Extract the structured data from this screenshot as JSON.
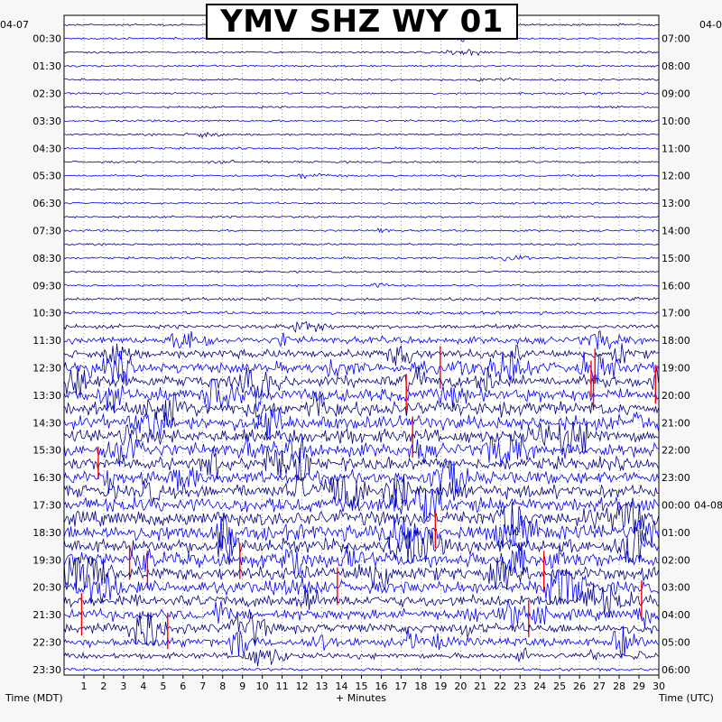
{
  "chart_data": {
    "type": "line",
    "title": "YMV SHZ WY 01",
    "xlabel": "+ Minutes",
    "left_axis_title": "Time (MDT)",
    "right_axis_title": "Time (UTC)",
    "left_start_date": "04-07",
    "right_start_date": "04-0",
    "right_date_change": "04-08",
    "xlim": [
      0,
      30
    ],
    "x_ticks": [
      "1",
      "2",
      "3",
      "4",
      "5",
      "6",
      "7",
      "8",
      "9",
      "10",
      "11",
      "12",
      "13",
      "14",
      "15",
      "16",
      "17",
      "18",
      "19",
      "20",
      "21",
      "22",
      "23",
      "24",
      "25",
      "26",
      "27",
      "28",
      "29",
      "30"
    ],
    "left_time_labels": [
      "00:30",
      "01:30",
      "02:30",
      "03:30",
      "04:30",
      "05:30",
      "06:30",
      "07:30",
      "08:30",
      "09:30",
      "10:30",
      "11:30",
      "12:30",
      "13:30",
      "14:30",
      "15:30",
      "16:30",
      "17:30",
      "18:30",
      "19:30",
      "20:30",
      "21:30",
      "22:30",
      "23:30"
    ],
    "right_time_labels": [
      "07:00",
      "08:00",
      "09:00",
      "10:00",
      "11:00",
      "12:00",
      "13:00",
      "14:00",
      "15:00",
      "16:00",
      "17:00",
      "18:00",
      "19:00",
      "20:00",
      "21:00",
      "22:00",
      "23:00",
      "00:00",
      "01:00",
      "02:00",
      "03:00",
      "04:00",
      "05:00",
      "06:00"
    ],
    "trace_count": 48,
    "trace_colors": [
      "#000080",
      "#0000ff"
    ],
    "clip_color": "#ff0000",
    "grid": "dotted vertical every minute",
    "activity_by_trace": [
      1,
      1,
      1,
      1,
      1,
      1,
      1,
      1,
      1,
      1,
      1,
      1,
      1,
      1,
      1,
      1,
      1,
      1,
      1,
      1,
      2,
      2,
      3,
      6,
      8,
      10,
      11,
      12,
      13,
      13,
      13,
      13,
      12,
      12,
      13,
      14,
      14,
      15,
      14,
      14,
      13,
      12,
      11,
      10,
      9,
      8,
      5,
      2
    ]
  }
}
